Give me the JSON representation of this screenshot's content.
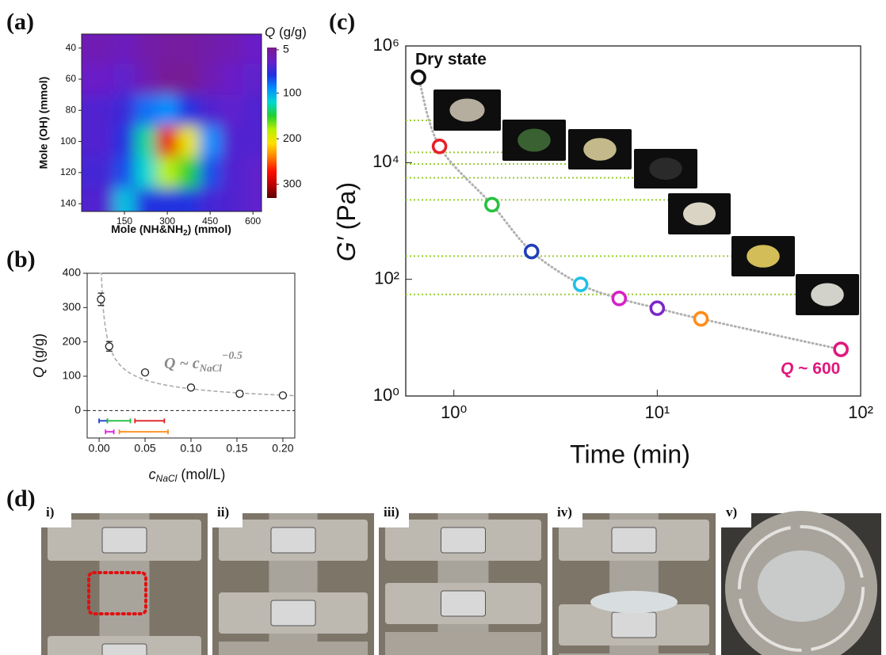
{
  "panel_labels": [
    "(a)",
    "(b)",
    "(c)",
    "(d)"
  ],
  "chart_data": [
    {
      "type": "heatmap",
      "x_label": [
        "Mole (NH&NH",
        "2",
        ") (mmol)"
      ],
      "y_label": "Mole (OH) (mmol)",
      "x": [
        75,
        150,
        225,
        300,
        375,
        450,
        525,
        600
      ],
      "y": [
        40,
        60,
        80,
        100,
        120,
        140
      ],
      "z": [
        [
          20,
          25,
          15,
          10,
          10,
          15,
          20,
          30
        ],
        [
          30,
          35,
          20,
          5,
          5,
          20,
          30,
          35
        ],
        [
          40,
          50,
          80,
          90,
          60,
          40,
          35,
          40
        ],
        [
          40,
          60,
          130,
          280,
          200,
          90,
          40,
          40
        ],
        [
          45,
          70,
          120,
          180,
          150,
          70,
          40,
          35
        ],
        [
          40,
          110,
          60,
          60,
          60,
          45,
          40,
          35
        ]
      ],
      "xlim": [
        0,
        630
      ],
      "ylim": [
        31,
        145
      ],
      "y_reversed": true,
      "xticks": [
        150,
        300,
        450,
        600
      ],
      "yticks": [
        40,
        60,
        80,
        100,
        120,
        140
      ],
      "colorbar_label": [
        "Q",
        " (g/g)"
      ],
      "clim": [
        0,
        330
      ],
      "cticks": [
        5,
        100,
        200,
        300
      ],
      "colormap": [
        "#7a1a8c",
        "#6a1ec8",
        "#2030e0",
        "#0090ff",
        "#00d8d0",
        "#20d030",
        "#b8f000",
        "#ffe000",
        "#ff8000",
        "#ff1000",
        "#c00000",
        "#5a0000"
      ]
    },
    {
      "type": "scatter",
      "y_label": [
        "Q",
        " (g/g)"
      ],
      "x_label": [
        "c",
        "NaCl",
        " (mol/L)"
      ],
      "x": [
        0.002,
        0.011,
        0.05,
        0.1,
        0.153,
        0.2
      ],
      "y": [
        324,
        187,
        111,
        67,
        49,
        44
      ],
      "errors": [
        18,
        14,
        6,
        6,
        8,
        7
      ],
      "xlim": [
        -0.013,
        0.213
      ],
      "ylim": [
        -80,
        400
      ],
      "xticks": [
        {
          "value": 0,
          "label": "0.00"
        },
        0.05,
        {
          "value": 0.1,
          "label": "0.10"
        },
        0.15,
        {
          "value": 0.2,
          "label": "0.20"
        }
      ],
      "yticks": [
        0,
        100,
        200,
        300,
        400
      ],
      "fit": {
        "coefficient": 20,
        "exponent": -0.5
      },
      "annotation": [
        "Q ~ c",
        "NaCl",
        "−0.5"
      ],
      "reference_line": 0,
      "ranges": [
        {
          "color": "#1f3fd0",
          "y": -30,
          "x": [
            0,
            0.009
          ]
        },
        {
          "color": "#20c040",
          "y": -30,
          "x": [
            0.009,
            0.034
          ]
        },
        {
          "color": "#e02020",
          "y": -30,
          "x": [
            0.039,
            0.071
          ]
        },
        {
          "color": "#e020e0",
          "y": -62,
          "x": [
            0.007,
            0.016
          ]
        },
        {
          "color": "#ff8c1a",
          "y": -62,
          "x": [
            0.022,
            0.075
          ]
        }
      ]
    },
    {
      "type": "logscatter",
      "x_label": "Time (min)",
      "y_label": [
        "G′",
        " (Pa)"
      ],
      "x": [
        0.67,
        0.85,
        1.54,
        2.41,
        4.2,
        6.5,
        10,
        16.4,
        80
      ],
      "y": [
        290000,
        19000,
        1900,
        300,
        82,
        47,
        32,
        21,
        6.3
      ],
      "colors": [
        "#111111",
        "#e8202a",
        "#28c040",
        "#1f3fb8",
        "#20c0e8",
        "#d820c8",
        "#7b28c8",
        "#ff8c1a",
        "#e0187d"
      ],
      "trend_color": "#b0b0b0",
      "xlim": [
        0.58,
        100
      ],
      "ylim": [
        1,
        1000000
      ],
      "xticks": [
        {
          "value": 1,
          "label": "10⁰"
        },
        {
          "value": 10,
          "label": "10¹"
        },
        {
          "value": 100,
          "label": "10²"
        }
      ],
      "yticks": [
        {
          "value": 1,
          "label": "10⁰"
        },
        {
          "value": 100,
          "label": "10²"
        },
        {
          "value": 10000,
          "label": "10⁴"
        },
        {
          "value": 1000000,
          "label": "10⁶"
        }
      ],
      "reference_levels": [
        53000,
        15000,
        9500,
        5500,
        2300,
        250,
        55
      ],
      "reference_color": "#9acd32",
      "annotations": {
        "start": "Dry state",
        "end": [
          "Q",
          " ~ 600"
        ]
      },
      "end_color": "#e0187d"
    }
  ],
  "photos": {
    "labels": [
      "i)",
      "ii)",
      "iii)",
      "iv)",
      "v)"
    ]
  }
}
